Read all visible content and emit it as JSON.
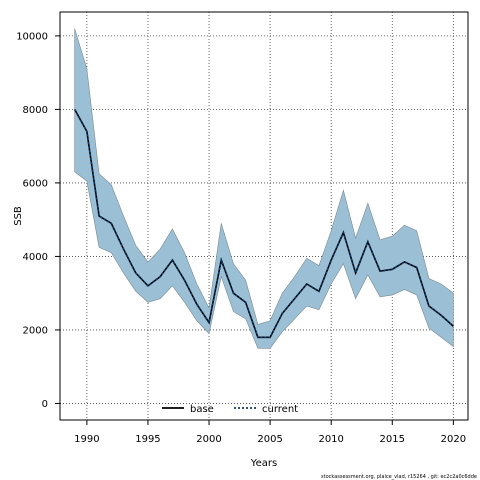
{
  "chart_data": {
    "type": "line",
    "title": "",
    "xlabel": "Years",
    "ylabel": "SSB",
    "xlim": [
      1987.8,
      2021.2
    ],
    "ylim": [
      -450,
      10650
    ],
    "xticks": [
      1990,
      1995,
      2000,
      2005,
      2010,
      2015,
      2020
    ],
    "yticks": [
      0,
      2000,
      4000,
      6000,
      8000,
      10000
    ],
    "grid": true,
    "legend_position": "bottom-center",
    "x": [
      1989,
      1990,
      1991,
      1992,
      1993,
      1994,
      1995,
      1996,
      1997,
      1998,
      1999,
      2000,
      2001,
      2002,
      2003,
      2004,
      2005,
      2006,
      2007,
      2008,
      2009,
      2010,
      2011,
      2012,
      2013,
      2014,
      2015,
      2016,
      2017,
      2018,
      2019,
      2020
    ],
    "band": {
      "upper": [
        10200,
        9100,
        6250,
        5950,
        5100,
        4300,
        3850,
        4200,
        4750,
        4100,
        3250,
        2600,
        4900,
        3800,
        3350,
        2150,
        2250,
        3000,
        3450,
        3950,
        3750,
        4700,
        5800,
        4500,
        5450,
        4450,
        4550,
        4850,
        4700,
        3400,
        3250,
        3000
      ],
      "lower": [
        6300,
        6050,
        4250,
        4100,
        3550,
        3050,
        2750,
        2850,
        3200,
        2750,
        2250,
        1900,
        3450,
        2500,
        2300,
        1500,
        1500,
        1950,
        2300,
        2650,
        2550,
        3250,
        3800,
        2850,
        3500,
        2900,
        2950,
        3100,
        2950,
        2050,
        1800,
        1550
      ]
    },
    "series": [
      {
        "name": "base",
        "values": [
          8000,
          7400,
          5100,
          4900,
          4200,
          3550,
          3200,
          3450,
          3900,
          3350,
          2700,
          2200,
          3900,
          3000,
          2750,
          1800,
          1800,
          2450,
          2850,
          3250,
          3050,
          3900,
          4650,
          3550,
          4400,
          3600,
          3650,
          3850,
          3700,
          2650,
          2400,
          2100
        ]
      },
      {
        "name": "current",
        "values": [
          8000,
          7400,
          5100,
          4900,
          4200,
          3550,
          3200,
          3450,
          3900,
          3350,
          2700,
          2200,
          3900,
          3000,
          2750,
          1800,
          1800,
          2450,
          2850,
          3250,
          3050,
          3900,
          4650,
          3550,
          4400,
          3600,
          3650,
          3850,
          3700,
          2650,
          2400,
          2100
        ]
      }
    ],
    "colors": {
      "band_fill": "#9bbfd4",
      "band_stroke": "#7a8a94",
      "base": "#000000",
      "current": "#0b3b6b"
    },
    "footer": "stockassessment.org, plaice_vlad, r15264 , git: ec2c2a0c6dde"
  }
}
